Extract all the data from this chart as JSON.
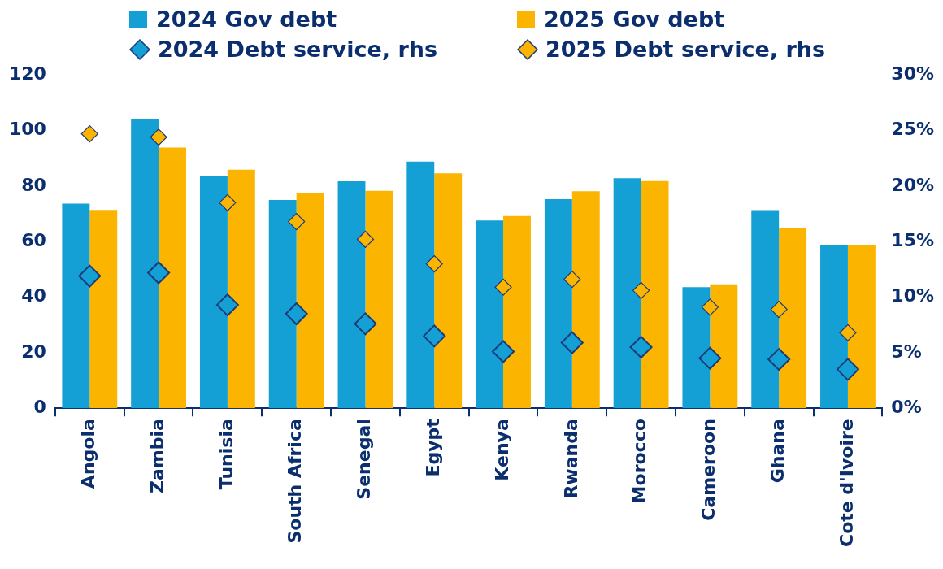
{
  "chart_data": {
    "type": "bar",
    "categories": [
      "Angola",
      "Zambia",
      "Tunisia",
      "South Africa",
      "Senegal",
      "Egypt",
      "Kenya",
      "Rwanda",
      "Morocco",
      "Cameroon",
      "Ghana",
      "Cote d'Ivoire"
    ],
    "series": [
      {
        "name": "2024 Gov debt",
        "color": "#14a0d4",
        "values": [
          73.7,
          104.2,
          83.7,
          75.0,
          81.7,
          88.8,
          67.6,
          75.3,
          82.8,
          43.6,
          71.3,
          58.7
        ]
      },
      {
        "name": "2025 Gov debt",
        "color": "#fbb400",
        "values": [
          71.4,
          93.9,
          85.9,
          77.3,
          78.3,
          84.6,
          69.2,
          78.1,
          81.8,
          44.6,
          64.8,
          58.7
        ]
      },
      {
        "name": "2024 Debt service, rhs",
        "type": "scatter",
        "axis": "y2",
        "marker": "diamond",
        "color": "#14a0d4",
        "x": [
          "Angola",
          "Zambia",
          "Tunisia",
          "South Africa",
          "Senegal",
          "Egypt",
          "Kenya",
          "Rwanda",
          "Morocco",
          "Cameroon",
          "Ghana",
          "Cote d'Ivoire"
        ],
        "values": [
          11.9,
          12.2,
          9.3,
          8.5,
          7.6,
          6.5,
          5.1,
          5.9,
          5.5,
          4.5,
          4.4,
          3.5
        ]
      },
      {
        "name": "2025 Debt service, rhs",
        "type": "scatter",
        "axis": "y2",
        "marker": "diamond",
        "color": "#fbb400",
        "x": [
          "Angola",
          "Zambia",
          "Tunisia",
          "South Africa",
          "Senegal",
          "Egypt",
          "Kenya",
          "Rwanda",
          "Morocco",
          "Cameroon",
          "Ghana",
          "Cote d'Ivoire"
        ],
        "values": [
          24.7,
          24.4,
          18.5,
          16.8,
          15.2,
          13.0,
          10.9,
          11.6,
          10.6,
          9.1,
          8.9,
          6.8
        ]
      }
    ],
    "ylim": [
      0,
      120
    ],
    "yticks": [
      0,
      20,
      40,
      60,
      80,
      100,
      120
    ],
    "y2lim": [
      0,
      30
    ],
    "y2ticks": [
      {
        "value": 0,
        "label": "0%"
      },
      {
        "value": 5,
        "label": "5%"
      },
      {
        "value": 10,
        "label": "10%"
      },
      {
        "value": 15,
        "label": "15%"
      },
      {
        "value": 20,
        "label": "20%"
      },
      {
        "value": 25,
        "label": "25%"
      },
      {
        "value": 30,
        "label": "30%"
      }
    ],
    "legend": "top",
    "grid": false
  }
}
